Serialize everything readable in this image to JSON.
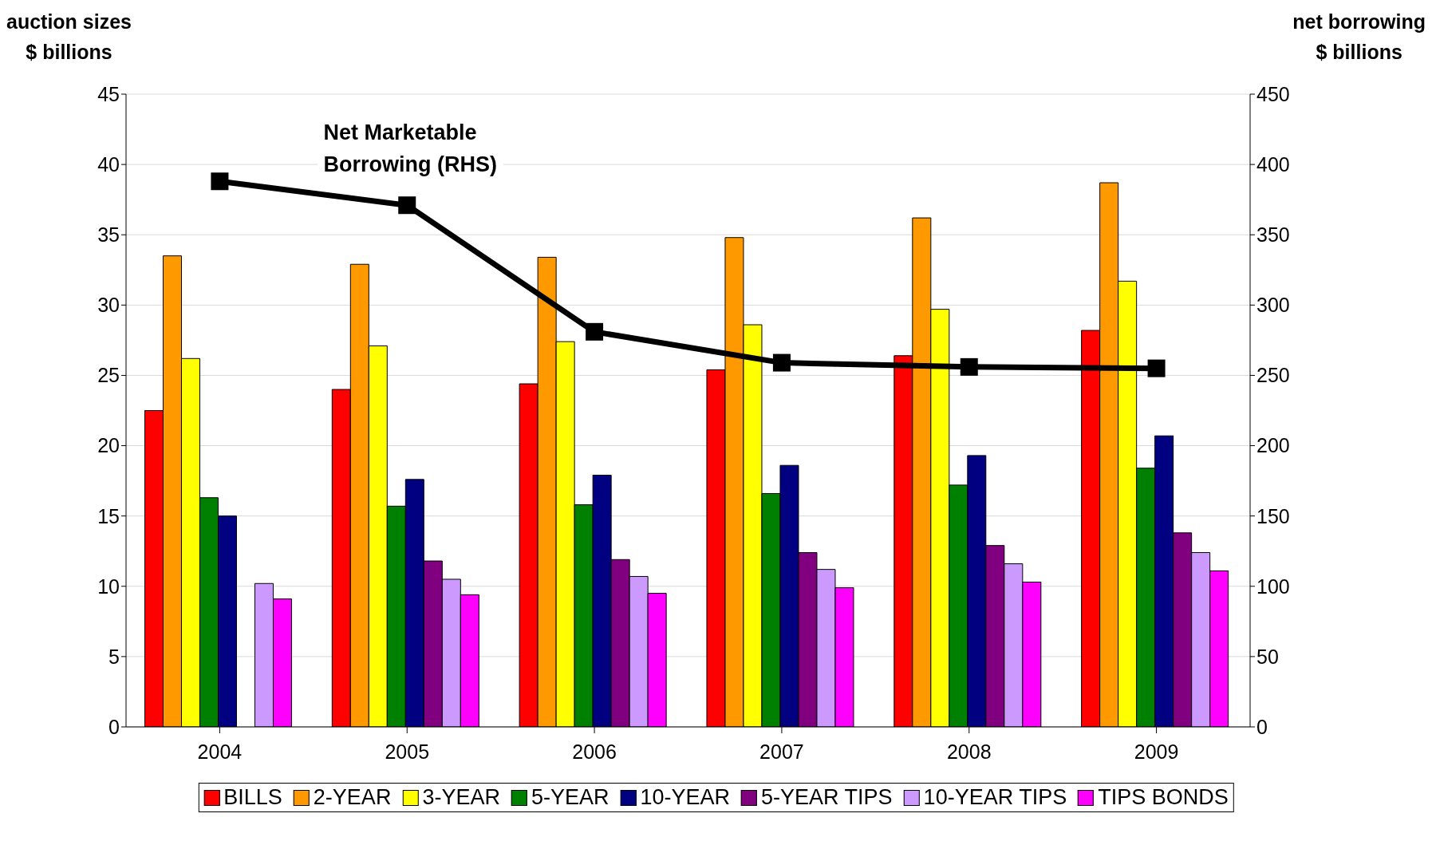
{
  "chart_data": {
    "type": "bar",
    "ylabel": "auction sizes\n$ billions",
    "y2label": "net borrowing\n$ billions",
    "categories": [
      "2004",
      "2005",
      "2006",
      "2007",
      "2008",
      "2009"
    ],
    "series": [
      {
        "name": "BILLS",
        "color": "#ff0000",
        "values": [
          22.5,
          24.0,
          24.4,
          25.4,
          26.4,
          28.2
        ]
      },
      {
        "name": "2-YEAR",
        "color": "#ff9900",
        "values": [
          33.5,
          32.9,
          33.4,
          34.8,
          36.2,
          38.7
        ]
      },
      {
        "name": "3-YEAR",
        "color": "#ffff00",
        "values": [
          26.2,
          27.1,
          27.4,
          28.6,
          29.7,
          31.7
        ]
      },
      {
        "name": "5-YEAR",
        "color": "#008000",
        "values": [
          16.3,
          15.7,
          15.8,
          16.6,
          17.2,
          18.4
        ]
      },
      {
        "name": "10-YEAR",
        "color": "#000080",
        "values": [
          15.0,
          17.6,
          17.9,
          18.6,
          19.3,
          20.7
        ]
      },
      {
        "name": "5-YEAR TIPS",
        "color": "#800080",
        "values": [
          null,
          11.8,
          11.9,
          12.4,
          12.9,
          13.8
        ]
      },
      {
        "name": "10-YEAR TIPS",
        "color": "#cc99ff",
        "values": [
          10.2,
          10.5,
          10.7,
          11.2,
          11.6,
          12.4
        ]
      },
      {
        "name": "TIPS BONDS",
        "color": "#ff00ff",
        "values": [
          9.1,
          9.4,
          9.5,
          9.9,
          10.3,
          11.1
        ]
      },
      {
        "type": "line",
        "axis": "y2",
        "color": "#000000",
        "marker": "square",
        "line_style": "solid",
        "values": [
          388,
          371,
          281,
          259,
          256,
          255
        ]
      }
    ],
    "ylim": [
      0,
      45
    ],
    "yticks": [
      0,
      5,
      10,
      15,
      20,
      25,
      30,
      35,
      40,
      45
    ],
    "y2lim": [
      0,
      450
    ],
    "y2ticks": [
      0,
      50,
      100,
      150,
      200,
      250,
      300,
      350,
      400,
      450
    ],
    "grid": "y",
    "legend": "bottom",
    "annotations": [
      "Net Marketable\nBorrowing (RHS)"
    ]
  }
}
